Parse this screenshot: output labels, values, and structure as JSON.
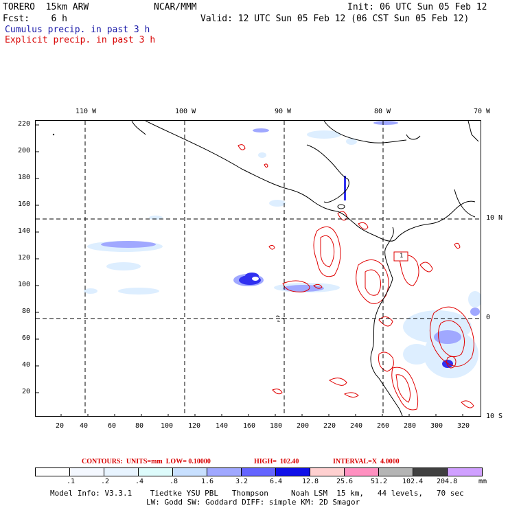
{
  "header": {
    "model": "TORERO  15km ARW",
    "center": "NCAR/MMM",
    "init": "Init: 06 UTC Sun 05 Feb 12",
    "fcst": "Fcst:    6 h",
    "valid": "Valid: 12 UTC Sun 05 Feb 12 (06 CST Sun 05 Feb 12)",
    "cumulus": "Cumulus precip. in past 3 h",
    "explicit": "Explicit precip. in past 3 h"
  },
  "axes": {
    "lon_labels": [
      "110 W",
      "100 W",
      "90 W",
      "80 W",
      "70 W"
    ],
    "lat_labels": [
      "10 N",
      "0",
      "10 S"
    ],
    "x_ticks": [
      "20",
      "40",
      "60",
      "80",
      "100",
      "120",
      "140",
      "160",
      "180",
      "200",
      "220",
      "240",
      "260",
      "280",
      "300",
      "320"
    ],
    "y_ticks": [
      "220",
      "200",
      "180",
      "160",
      "140",
      "120",
      "100",
      "80",
      "60",
      "40",
      "20"
    ]
  },
  "contour_info": {
    "contours": "CONTOURS:  UNITS=mm  LOW= 0.10000",
    "high": "HIGH=  102.40",
    "interval": "INTERVAL=X  4.0000"
  },
  "legend": {
    "labels": [
      ".1",
      ".2",
      ".4",
      ".8",
      "1.6",
      "3.2",
      "6.4",
      "12.8",
      "25.6",
      "51.2",
      "102.4",
      "204.8"
    ],
    "unit": "mm",
    "colors": [
      "#ffffff",
      "#f4f8ff",
      "#e8f4ff",
      "#ddfbfb",
      "#c8e0ff",
      "#a0a8ff",
      "#6464ff",
      "#1010e8",
      "#ffd0d0",
      "#ff90c0",
      "#b4b4b4",
      "#404040",
      "#d0a0ff"
    ]
  },
  "footer": {
    "line1": "Model Info: V3.3.1    Tiedtke YSU PBL   Thompson     Noah LSM  15 km,   44 levels,   70 sec",
    "line2": "LW: Godd SW: Goddard DIFF: simple KM: 2D Smagor"
  },
  "marker": "1"
}
